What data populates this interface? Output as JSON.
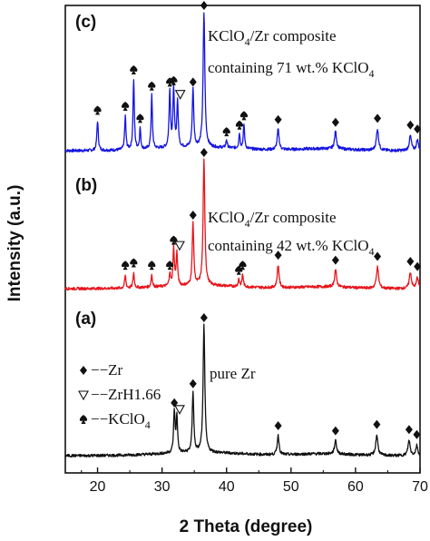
{
  "chart_data": {
    "type": "line",
    "xlabel": "2 Theta (degree)",
    "ylabel": "Intensity (a.u.)",
    "xlim": [
      15,
      70
    ],
    "xticks": [
      20,
      30,
      40,
      50,
      60,
      70
    ],
    "colors": {
      "a": "#111111",
      "b": "#e8141b",
      "c": "#1515e0"
    },
    "panels": [
      {
        "id": "c",
        "label": "(c)",
        "color": "#1515e0",
        "annotation_parts": [
          "KClO",
          "4",
          "/Zr composite"
        ],
        "annotation_line2_parts": [
          "containing 71 wt.% KClO",
          "4"
        ],
        "peaks": [
          {
            "x": 20.0,
            "h": 0.22,
            "w": 0.13,
            "marker": "spade"
          },
          {
            "x": 24.3,
            "h": 0.25,
            "w": 0.12,
            "marker": "spade"
          },
          {
            "x": 25.6,
            "h": 0.52,
            "w": 0.12,
            "marker": "spade"
          },
          {
            "x": 26.6,
            "h": 0.16,
            "w": 0.11,
            "marker": "spade"
          },
          {
            "x": 28.4,
            "h": 0.4,
            "w": 0.12,
            "marker": "spade"
          },
          {
            "x": 31.2,
            "h": 0.43,
            "w": 0.13,
            "marker": "spade"
          },
          {
            "x": 31.8,
            "h": 0.44,
            "w": 0.13,
            "marker": "spade"
          },
          {
            "x": 32.4,
            "h": 0.34,
            "w": 0.13,
            "marker": "triangle"
          },
          {
            "x": 34.8,
            "h": 0.43,
            "w": 0.14,
            "marker": "diamond"
          },
          {
            "x": 36.5,
            "h": 1.0,
            "w": 0.16,
            "marker": "diamond"
          },
          {
            "x": 40.0,
            "h": 0.06,
            "w": 0.12,
            "marker": "spade"
          },
          {
            "x": 42.0,
            "h": 0.11,
            "w": 0.12,
            "marker": "spade"
          },
          {
            "x": 42.7,
            "h": 0.18,
            "w": 0.12,
            "marker": "spade"
          },
          {
            "x": 48.0,
            "h": 0.15,
            "w": 0.17,
            "marker": "diamond"
          },
          {
            "x": 56.9,
            "h": 0.13,
            "w": 0.18,
            "marker": "diamond"
          },
          {
            "x": 63.4,
            "h": 0.16,
            "w": 0.2,
            "marker": "diamond"
          },
          {
            "x": 68.5,
            "h": 0.11,
            "w": 0.2,
            "marker": "diamond"
          },
          {
            "x": 69.6,
            "h": 0.08,
            "w": 0.18,
            "marker": "diamond"
          }
        ]
      },
      {
        "id": "b",
        "label": "(b)",
        "color": "#e8141b",
        "annotation_parts": [
          "KClO",
          "4",
          "/Zr composite"
        ],
        "annotation_line2_parts": [
          "containing 42 wt.% KClO",
          "4"
        ],
        "peaks": [
          {
            "x": 24.3,
            "h": 0.1,
            "w": 0.12,
            "marker": "spade"
          },
          {
            "x": 25.6,
            "h": 0.12,
            "w": 0.12,
            "marker": "spade"
          },
          {
            "x": 28.4,
            "h": 0.1,
            "w": 0.12,
            "marker": "spade"
          },
          {
            "x": 31.2,
            "h": 0.1,
            "w": 0.12,
            "marker": "spade"
          },
          {
            "x": 31.8,
            "h": 0.3,
            "w": 0.13,
            "marker": "spade"
          },
          {
            "x": 32.3,
            "h": 0.26,
            "w": 0.13,
            "marker": "triangle"
          },
          {
            "x": 34.8,
            "h": 0.5,
            "w": 0.14,
            "marker": "diamond"
          },
          {
            "x": 36.5,
            "h": 1.0,
            "w": 0.16,
            "marker": "diamond"
          },
          {
            "x": 41.9,
            "h": 0.06,
            "w": 0.12,
            "marker": "spade"
          },
          {
            "x": 42.5,
            "h": 0.1,
            "w": 0.12,
            "marker": "spade"
          },
          {
            "x": 48.0,
            "h": 0.18,
            "w": 0.17,
            "marker": "diamond"
          },
          {
            "x": 56.9,
            "h": 0.14,
            "w": 0.18,
            "marker": "diamond"
          },
          {
            "x": 63.4,
            "h": 0.17,
            "w": 0.2,
            "marker": "diamond"
          },
          {
            "x": 68.5,
            "h": 0.13,
            "w": 0.2,
            "marker": "diamond"
          },
          {
            "x": 69.6,
            "h": 0.09,
            "w": 0.18,
            "marker": "diamond"
          }
        ]
      },
      {
        "id": "a",
        "label": "(a)",
        "color": "#111111",
        "annotation_parts": [
          "pure Zr"
        ],
        "annotation_line2_parts": [],
        "peaks": [
          {
            "x": 31.9,
            "h": 0.33,
            "w": 0.13,
            "marker": "diamond"
          },
          {
            "x": 32.3,
            "h": 0.28,
            "w": 0.13,
            "marker": "triangle"
          },
          {
            "x": 34.8,
            "h": 0.48,
            "w": 0.14,
            "marker": "diamond"
          },
          {
            "x": 36.5,
            "h": 1.0,
            "w": 0.16,
            "marker": "diamond"
          },
          {
            "x": 48.0,
            "h": 0.15,
            "w": 0.17,
            "marker": "diamond"
          },
          {
            "x": 56.9,
            "h": 0.11,
            "w": 0.18,
            "marker": "diamond"
          },
          {
            "x": 63.3,
            "h": 0.16,
            "w": 0.2,
            "marker": "diamond"
          },
          {
            "x": 68.3,
            "h": 0.12,
            "w": 0.2,
            "marker": "diamond"
          },
          {
            "x": 69.5,
            "h": 0.08,
            "w": 0.18,
            "marker": "diamond"
          }
        ]
      }
    ],
    "legend": [
      {
        "symbol": "◆",
        "marker": "diamond",
        "text_parts": [
          "−−Zr"
        ]
      },
      {
        "symbol": "▽",
        "marker": "triangle",
        "text_parts": [
          "−−ZrH1.66"
        ]
      },
      {
        "symbol": "♠",
        "marker": "spade",
        "text_parts": [
          "−−KClO",
          "4"
        ]
      }
    ],
    "legend_placement": "left of panel (a)",
    "grid": false
  }
}
